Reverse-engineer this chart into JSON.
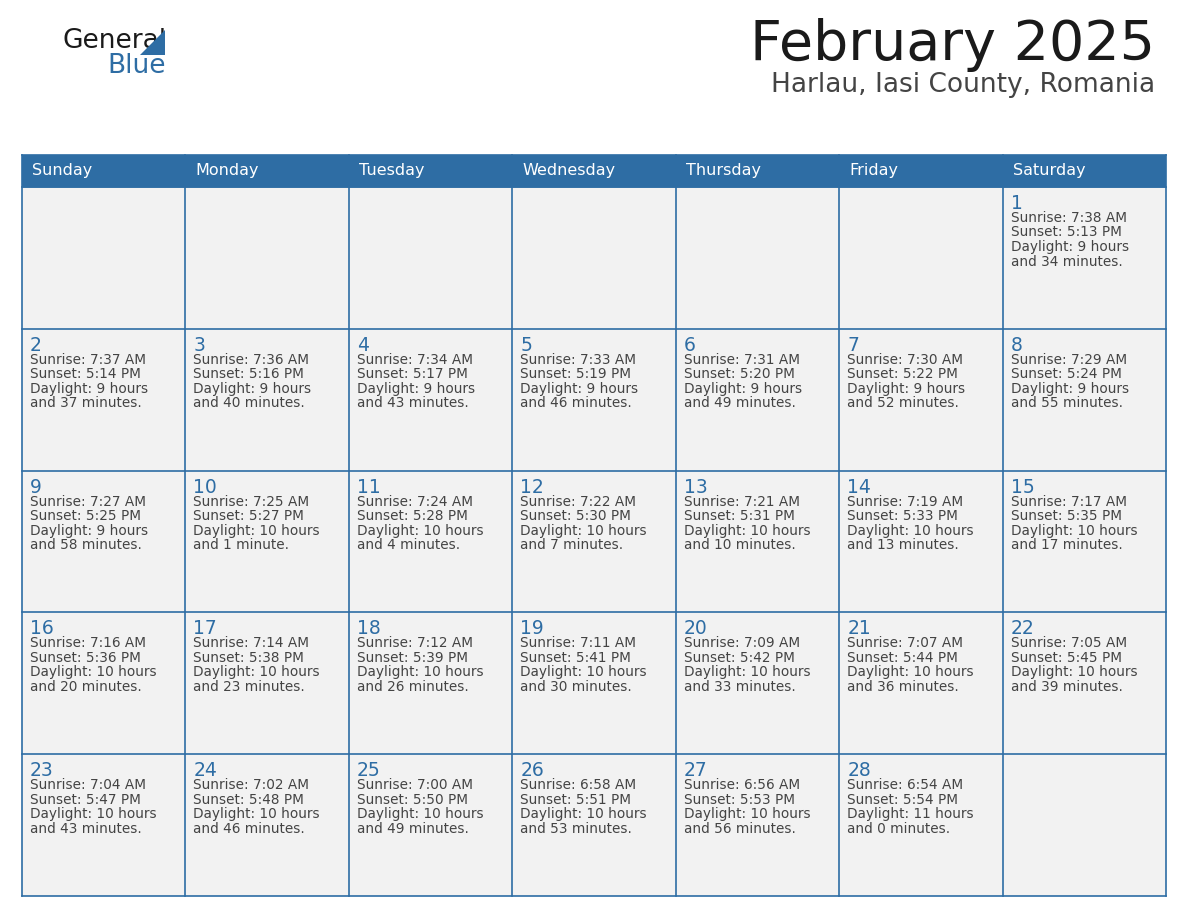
{
  "title": "February 2025",
  "subtitle": "Harlau, Iasi County, Romania",
  "header_bg_color": "#2E6DA4",
  "header_text_color": "#FFFFFF",
  "cell_bg_light": "#F2F2F2",
  "cell_bg_white": "#FFFFFF",
  "border_color": "#2E6DA4",
  "day_headers": [
    "Sunday",
    "Monday",
    "Tuesday",
    "Wednesday",
    "Thursday",
    "Friday",
    "Saturday"
  ],
  "title_color": "#1a1a1a",
  "subtitle_color": "#444444",
  "day_number_color": "#2E6DA4",
  "detail_color": "#444444",
  "logo_general_color": "#1a1a1a",
  "logo_blue_color": "#2E6DA4",
  "logo_triangle_color": "#2E6DA4",
  "calendar_data": [
    [
      null,
      null,
      null,
      null,
      null,
      null,
      {
        "day": "1",
        "sunrise": "7:38 AM",
        "sunset": "5:13 PM",
        "daylight_line1": "Daylight: 9 hours",
        "daylight_line2": "and 34 minutes."
      }
    ],
    [
      {
        "day": "2",
        "sunrise": "7:37 AM",
        "sunset": "5:14 PM",
        "daylight_line1": "Daylight: 9 hours",
        "daylight_line2": "and 37 minutes."
      },
      {
        "day": "3",
        "sunrise": "7:36 AM",
        "sunset": "5:16 PM",
        "daylight_line1": "Daylight: 9 hours",
        "daylight_line2": "and 40 minutes."
      },
      {
        "day": "4",
        "sunrise": "7:34 AM",
        "sunset": "5:17 PM",
        "daylight_line1": "Daylight: 9 hours",
        "daylight_line2": "and 43 minutes."
      },
      {
        "day": "5",
        "sunrise": "7:33 AM",
        "sunset": "5:19 PM",
        "daylight_line1": "Daylight: 9 hours",
        "daylight_line2": "and 46 minutes."
      },
      {
        "day": "6",
        "sunrise": "7:31 AM",
        "sunset": "5:20 PM",
        "daylight_line1": "Daylight: 9 hours",
        "daylight_line2": "and 49 minutes."
      },
      {
        "day": "7",
        "sunrise": "7:30 AM",
        "sunset": "5:22 PM",
        "daylight_line1": "Daylight: 9 hours",
        "daylight_line2": "and 52 minutes."
      },
      {
        "day": "8",
        "sunrise": "7:29 AM",
        "sunset": "5:24 PM",
        "daylight_line1": "Daylight: 9 hours",
        "daylight_line2": "and 55 minutes."
      }
    ],
    [
      {
        "day": "9",
        "sunrise": "7:27 AM",
        "sunset": "5:25 PM",
        "daylight_line1": "Daylight: 9 hours",
        "daylight_line2": "and 58 minutes."
      },
      {
        "day": "10",
        "sunrise": "7:25 AM",
        "sunset": "5:27 PM",
        "daylight_line1": "Daylight: 10 hours",
        "daylight_line2": "and 1 minute."
      },
      {
        "day": "11",
        "sunrise": "7:24 AM",
        "sunset": "5:28 PM",
        "daylight_line1": "Daylight: 10 hours",
        "daylight_line2": "and 4 minutes."
      },
      {
        "day": "12",
        "sunrise": "7:22 AM",
        "sunset": "5:30 PM",
        "daylight_line1": "Daylight: 10 hours",
        "daylight_line2": "and 7 minutes."
      },
      {
        "day": "13",
        "sunrise": "7:21 AM",
        "sunset": "5:31 PM",
        "daylight_line1": "Daylight: 10 hours",
        "daylight_line2": "and 10 minutes."
      },
      {
        "day": "14",
        "sunrise": "7:19 AM",
        "sunset": "5:33 PM",
        "daylight_line1": "Daylight: 10 hours",
        "daylight_line2": "and 13 minutes."
      },
      {
        "day": "15",
        "sunrise": "7:17 AM",
        "sunset": "5:35 PM",
        "daylight_line1": "Daylight: 10 hours",
        "daylight_line2": "and 17 minutes."
      }
    ],
    [
      {
        "day": "16",
        "sunrise": "7:16 AM",
        "sunset": "5:36 PM",
        "daylight_line1": "Daylight: 10 hours",
        "daylight_line2": "and 20 minutes."
      },
      {
        "day": "17",
        "sunrise": "7:14 AM",
        "sunset": "5:38 PM",
        "daylight_line1": "Daylight: 10 hours",
        "daylight_line2": "and 23 minutes."
      },
      {
        "day": "18",
        "sunrise": "7:12 AM",
        "sunset": "5:39 PM",
        "daylight_line1": "Daylight: 10 hours",
        "daylight_line2": "and 26 minutes."
      },
      {
        "day": "19",
        "sunrise": "7:11 AM",
        "sunset": "5:41 PM",
        "daylight_line1": "Daylight: 10 hours",
        "daylight_line2": "and 30 minutes."
      },
      {
        "day": "20",
        "sunrise": "7:09 AM",
        "sunset": "5:42 PM",
        "daylight_line1": "Daylight: 10 hours",
        "daylight_line2": "and 33 minutes."
      },
      {
        "day": "21",
        "sunrise": "7:07 AM",
        "sunset": "5:44 PM",
        "daylight_line1": "Daylight: 10 hours",
        "daylight_line2": "and 36 minutes."
      },
      {
        "day": "22",
        "sunrise": "7:05 AM",
        "sunset": "5:45 PM",
        "daylight_line1": "Daylight: 10 hours",
        "daylight_line2": "and 39 minutes."
      }
    ],
    [
      {
        "day": "23",
        "sunrise": "7:04 AM",
        "sunset": "5:47 PM",
        "daylight_line1": "Daylight: 10 hours",
        "daylight_line2": "and 43 minutes."
      },
      {
        "day": "24",
        "sunrise": "7:02 AM",
        "sunset": "5:48 PM",
        "daylight_line1": "Daylight: 10 hours",
        "daylight_line2": "and 46 minutes."
      },
      {
        "day": "25",
        "sunrise": "7:00 AM",
        "sunset": "5:50 PM",
        "daylight_line1": "Daylight: 10 hours",
        "daylight_line2": "and 49 minutes."
      },
      {
        "day": "26",
        "sunrise": "6:58 AM",
        "sunset": "5:51 PM",
        "daylight_line1": "Daylight: 10 hours",
        "daylight_line2": "and 53 minutes."
      },
      {
        "day": "27",
        "sunrise": "6:56 AM",
        "sunset": "5:53 PM",
        "daylight_line1": "Daylight: 10 hours",
        "daylight_line2": "and 56 minutes."
      },
      {
        "day": "28",
        "sunrise": "6:54 AM",
        "sunset": "5:54 PM",
        "daylight_line1": "Daylight: 11 hours",
        "daylight_line2": "and 0 minutes."
      },
      null
    ]
  ]
}
